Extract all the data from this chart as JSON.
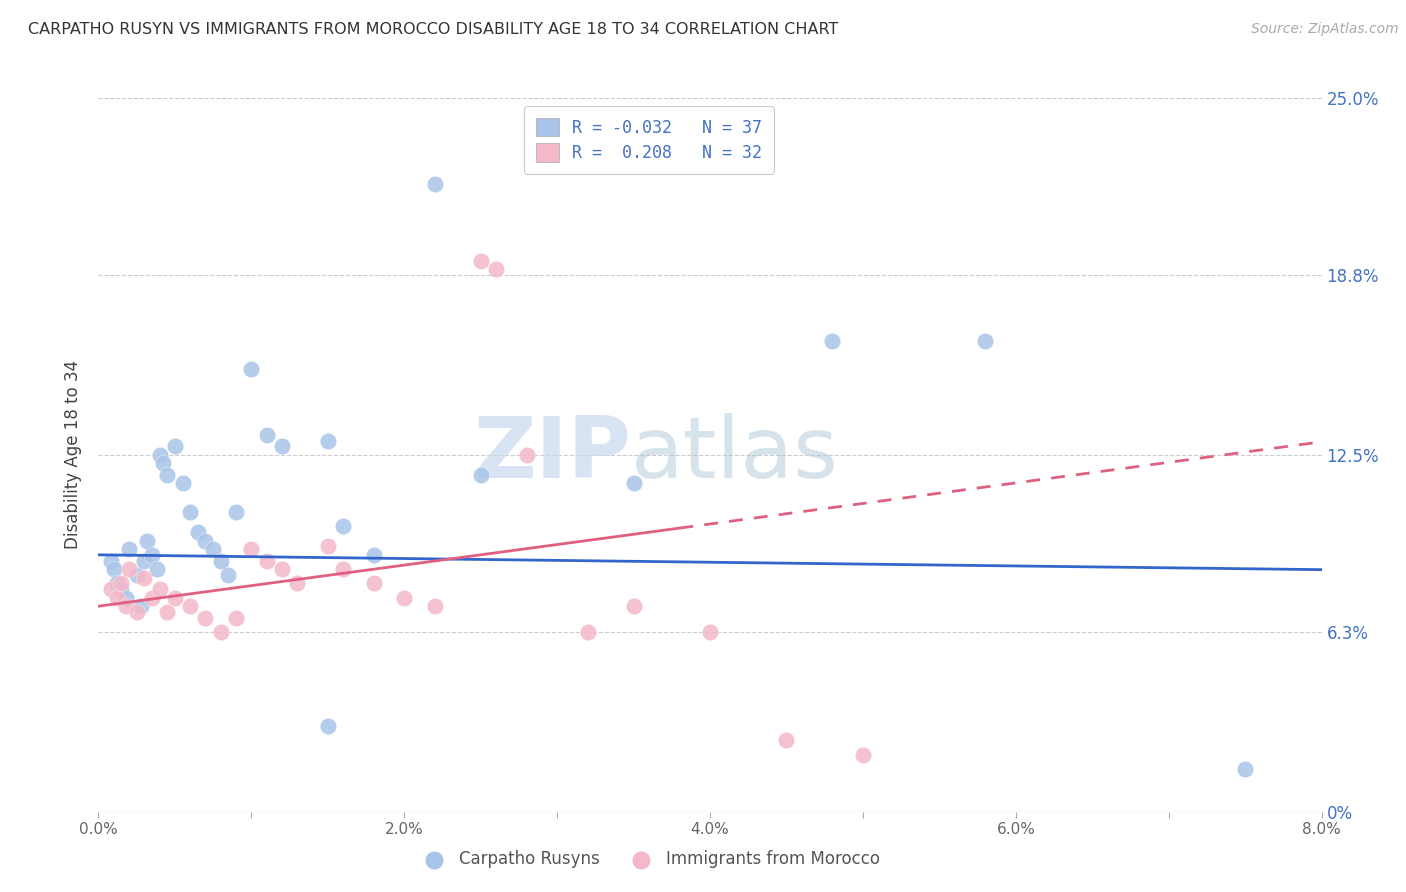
{
  "title": "CARPATHO RUSYN VS IMMIGRANTS FROM MOROCCO DISABILITY AGE 18 TO 34 CORRELATION CHART",
  "source": "Source: ZipAtlas.com",
  "ylabel": "Disability Age 18 to 34",
  "y_ticks": [
    0.0,
    6.3,
    12.5,
    18.8,
    25.0
  ],
  "y_tick_labels": [
    "0%",
    "6.3%",
    "12.5%",
    "18.8%",
    "25.0%"
  ],
  "xmin": 0.0,
  "xmax": 8.0,
  "ymin": 0.0,
  "ymax": 25.0,
  "legend_label1": "Carpatho Rusyns",
  "legend_label2": "Immigrants from Morocco",
  "r1": "-0.032",
  "n1": "37",
  "r2": "0.208",
  "n2": "32",
  "color1": "#a8c4e8",
  "color2": "#f4b8c8",
  "line_color1": "#3366cc",
  "line_color2": "#e06080",
  "blue_slope": -0.065,
  "blue_intercept": 9.0,
  "pink_slope": 0.72,
  "pink_intercept": 7.2,
  "pink_solid_end": 3.8,
  "watermark_zip": "ZIP",
  "watermark_atlas": "atlas",
  "blue_scatter": [
    [
      0.08,
      8.8
    ],
    [
      0.1,
      8.5
    ],
    [
      0.12,
      8.0
    ],
    [
      0.15,
      7.8
    ],
    [
      0.18,
      7.5
    ],
    [
      0.2,
      9.2
    ],
    [
      0.25,
      8.3
    ],
    [
      0.28,
      7.2
    ],
    [
      0.3,
      8.8
    ],
    [
      0.32,
      9.5
    ],
    [
      0.35,
      9.0
    ],
    [
      0.38,
      8.5
    ],
    [
      0.4,
      12.5
    ],
    [
      0.42,
      12.2
    ],
    [
      0.45,
      11.8
    ],
    [
      0.5,
      12.8
    ],
    [
      0.55,
      11.5
    ],
    [
      0.6,
      10.5
    ],
    [
      0.65,
      9.8
    ],
    [
      0.7,
      9.5
    ],
    [
      0.75,
      9.2
    ],
    [
      0.8,
      8.8
    ],
    [
      0.85,
      8.3
    ],
    [
      0.9,
      10.5
    ],
    [
      1.0,
      15.5
    ],
    [
      1.1,
      13.2
    ],
    [
      1.2,
      12.8
    ],
    [
      1.5,
      13.0
    ],
    [
      1.6,
      10.0
    ],
    [
      1.8,
      9.0
    ],
    [
      2.2,
      22.0
    ],
    [
      2.5,
      11.8
    ],
    [
      3.5,
      11.5
    ],
    [
      4.8,
      16.5
    ],
    [
      5.8,
      16.5
    ],
    [
      7.5,
      1.5
    ],
    [
      1.5,
      3.0
    ]
  ],
  "pink_scatter": [
    [
      0.08,
      7.8
    ],
    [
      0.12,
      7.5
    ],
    [
      0.15,
      8.0
    ],
    [
      0.18,
      7.2
    ],
    [
      0.2,
      8.5
    ],
    [
      0.25,
      7.0
    ],
    [
      0.3,
      8.2
    ],
    [
      0.35,
      7.5
    ],
    [
      0.4,
      7.8
    ],
    [
      0.45,
      7.0
    ],
    [
      0.5,
      7.5
    ],
    [
      0.6,
      7.2
    ],
    [
      0.7,
      6.8
    ],
    [
      0.8,
      6.3
    ],
    [
      0.9,
      6.8
    ],
    [
      1.0,
      9.2
    ],
    [
      1.1,
      8.8
    ],
    [
      1.2,
      8.5
    ],
    [
      1.3,
      8.0
    ],
    [
      1.5,
      9.3
    ],
    [
      1.6,
      8.5
    ],
    [
      1.8,
      8.0
    ],
    [
      2.0,
      7.5
    ],
    [
      2.2,
      7.2
    ],
    [
      2.5,
      19.3
    ],
    [
      2.6,
      19.0
    ],
    [
      2.8,
      12.5
    ],
    [
      3.2,
      6.3
    ],
    [
      3.5,
      7.2
    ],
    [
      4.0,
      6.3
    ],
    [
      4.5,
      2.5
    ],
    [
      5.0,
      2.0
    ]
  ]
}
